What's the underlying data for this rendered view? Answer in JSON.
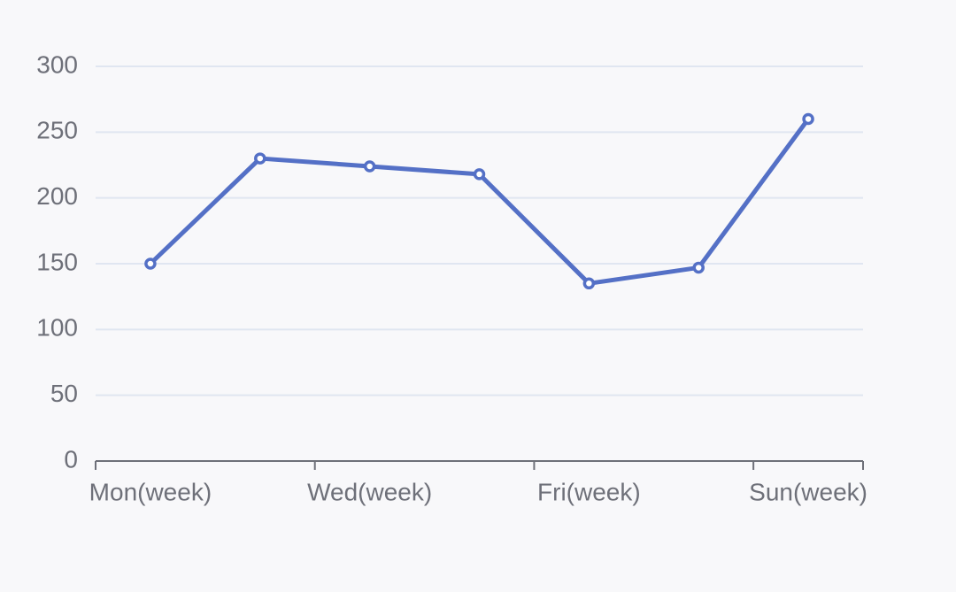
{
  "chart_data": {
    "type": "line",
    "categories": [
      "Mon(week)",
      null,
      "Wed(week)",
      null,
      "Fri(week)",
      null,
      "Sun(week)"
    ],
    "series": [
      {
        "color": "#5470c6",
        "values": [
          150,
          230,
          224,
          218,
          135,
          147,
          260
        ]
      }
    ],
    "ylim": [
      0,
      300
    ],
    "yticks": [
      0,
      50,
      100,
      150,
      200,
      250,
      300
    ],
    "grid": true
  }
}
